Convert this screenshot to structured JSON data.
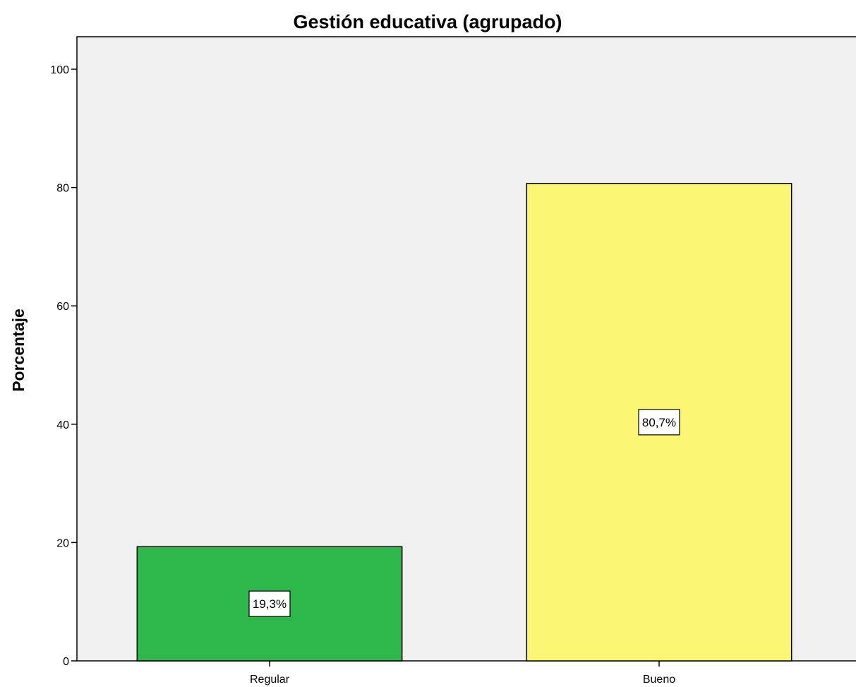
{
  "chart_data": {
    "type": "bar",
    "title": "Gestión educativa (agrupado)",
    "xlabel": "",
    "ylabel": "Porcentaje",
    "categories": [
      "Regular",
      "Bueno"
    ],
    "values": [
      19.3,
      80.7
    ],
    "data_labels": [
      "19,3%",
      "80,7%"
    ],
    "colors": [
      "#2eb84b",
      "#fbf674"
    ],
    "ylim": [
      0,
      100
    ],
    "yticks": [
      0,
      20,
      40,
      60,
      80,
      100
    ],
    "grid": false,
    "legend": "none",
    "plot_background": "#f0f0f0"
  }
}
